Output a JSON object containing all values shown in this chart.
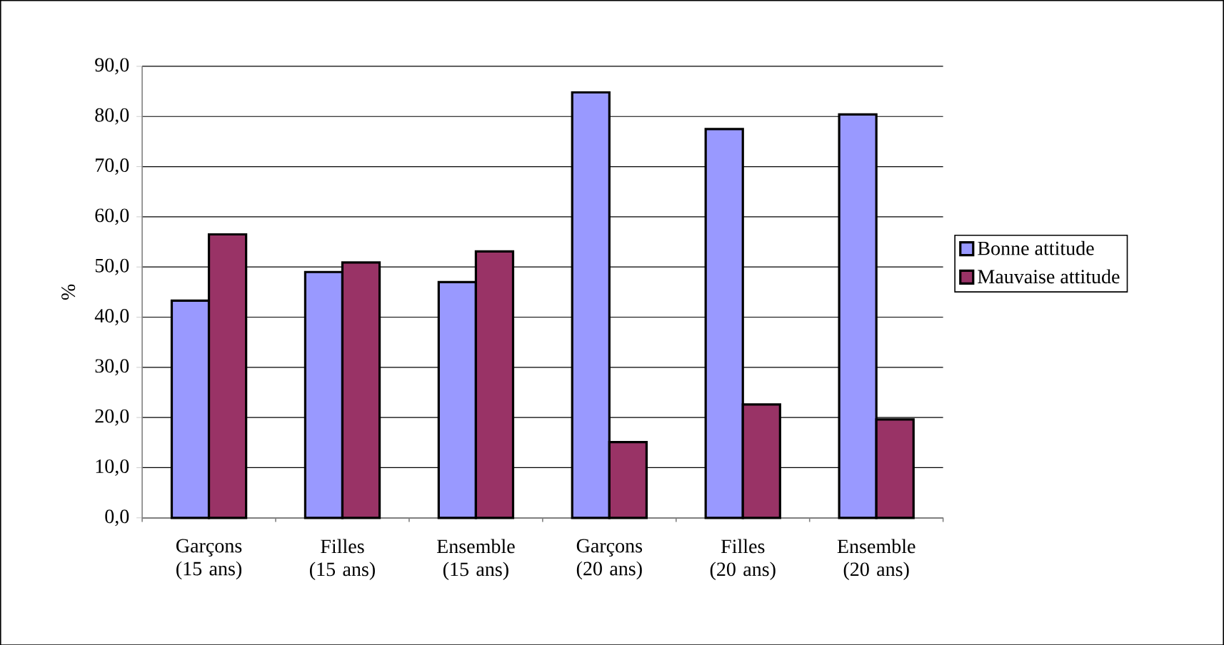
{
  "chart_data": {
    "type": "bar",
    "ylabel": "%",
    "categories": [
      "Garçons (15 ans)",
      "Filles (15 ans)",
      "Ensemble (15 ans)",
      "Garçons (20 ans)",
      "Filles (20 ans)",
      "Ensemble (20 ans)"
    ],
    "series": [
      {
        "name": "Bonne attitude",
        "color": "#9999ff",
        "values": [
          43.3,
          49.0,
          47.0,
          84.8,
          77.5,
          80.4
        ]
      },
      {
        "name": "Mauvaise attitude",
        "color": "#993366",
        "values": [
          56.5,
          50.9,
          53.1,
          15.1,
          22.6,
          19.6
        ]
      }
    ],
    "ylim": [
      0,
      90
    ],
    "yticks": [
      {
        "value": 0,
        "label": "0,0"
      },
      {
        "value": 10,
        "label": "10,0"
      },
      {
        "value": 20,
        "label": "20,0"
      },
      {
        "value": 30,
        "label": "30,0"
      },
      {
        "value": 40,
        "label": "40,0"
      },
      {
        "value": 50,
        "label": "50,0"
      },
      {
        "value": 60,
        "label": "60,0"
      },
      {
        "value": 70,
        "label": "70,0"
      },
      {
        "value": 80,
        "label": "80,0"
      },
      {
        "value": 90,
        "label": "90,0"
      }
    ],
    "grid": "y",
    "legend": "right"
  }
}
